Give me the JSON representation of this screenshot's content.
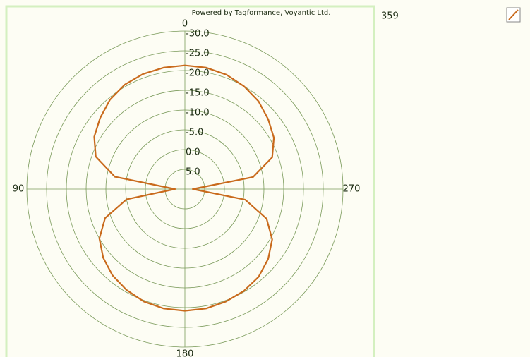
{
  "chart_data": {
    "type": "polar",
    "title": "Powered by Tagformance, Voyantic Ltd.",
    "theta_ticks": [
      0,
      90,
      180,
      270
    ],
    "rlim": [
      10,
      -30
    ],
    "rticks": [
      {
        "value": 5,
        "label": "5.0"
      },
      {
        "value": 0,
        "label": "0.0"
      },
      {
        "value": -5,
        "label": "-5.0"
      },
      {
        "value": -10,
        "label": "-10.0"
      },
      {
        "value": -15,
        "label": "-15.0"
      },
      {
        "value": -20,
        "label": "-20.0"
      },
      {
        "value": -25,
        "label": "-25.0"
      },
      {
        "value": -30,
        "label": "-30.0"
      }
    ],
    "grid": true,
    "series": [
      {
        "name": "359",
        "color": "#c96a1c",
        "theta": [
          0,
          10,
          20,
          30,
          40,
          50,
          60,
          70,
          80,
          90,
          100,
          110,
          120,
          130,
          140,
          150,
          160,
          170,
          180,
          190,
          200,
          210,
          220,
          230,
          240,
          250,
          260,
          270,
          280,
          290,
          300,
          310,
          320,
          330,
          340,
          350
        ],
        "values": [
          -21.3,
          -21.2,
          -21.0,
          -20.5,
          -19.5,
          -18.0,
          -16.5,
          -14.0,
          -8.0,
          7.5,
          -5.0,
          -11.5,
          -15.0,
          -17.0,
          -18.5,
          -19.5,
          -20.3,
          -20.7,
          -20.8,
          -20.7,
          -20.3,
          -19.8,
          -19.0,
          -17.5,
          -15.5,
          -12.0,
          -5.5,
          8.0,
          -7.5,
          -13.5,
          -16.0,
          -17.5,
          -19.0,
          -20.0,
          -20.8,
          -21.2
        ]
      }
    ]
  }
}
